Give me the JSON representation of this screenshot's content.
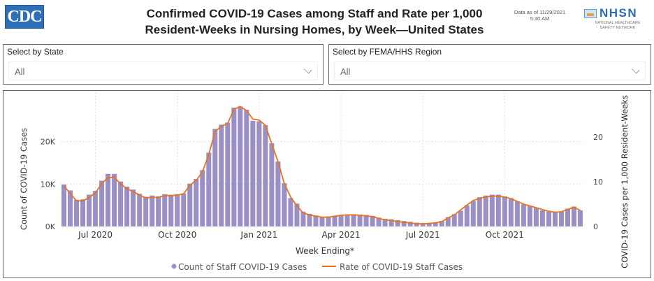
{
  "header": {
    "logo_text": "CDC",
    "title_line1": "Confirmed COVID-19 Cases among Staff and Rate per 1,000",
    "title_line2": "Resident-Weeks in Nursing Homes, by Week—United States",
    "data_as_of_line1": "Data as of 11/29/2021",
    "data_as_of_line2": "5:30 AM",
    "nhsn_text": "NHSN",
    "nhsn_sub1": "NATIONAL HEALTHCARE",
    "nhsn_sub2": "SAFETY NETWORK"
  },
  "filters": {
    "state": {
      "label": "Select by State",
      "value": "All"
    },
    "region": {
      "label": "Select by FEMA/HHS Region",
      "value": "All"
    }
  },
  "colors": {
    "bar": "#9a8fc6",
    "line": "#e8731a",
    "grid": "#d9d9d9"
  },
  "chart_data": {
    "type": "bar",
    "title": "Confirmed COVID-19 Cases among Staff and Rate per 1,000 Resident-Weeks in Nursing Homes, by Week—United States",
    "xlabel": "Week Ending*",
    "ylabel": "Count of COVID-19 Cases",
    "y2label": "COVID-19 Cases per 1,000 Resident-Weeks",
    "ylim": [
      0,
      29000
    ],
    "y2lim": [
      0,
      27.5
    ],
    "yticks": [
      {
        "v": 0,
        "label": "0K"
      },
      {
        "v": 10000,
        "label": "10K"
      },
      {
        "v": 20000,
        "label": "20K"
      }
    ],
    "y2ticks": [
      {
        "v": 0,
        "label": "0"
      },
      {
        "v": 10,
        "label": "10"
      },
      {
        "v": 20,
        "label": "20"
      }
    ],
    "xticks": [
      {
        "index": 5,
        "label": "Jul 2020"
      },
      {
        "index": 18,
        "label": "Oct 2020"
      },
      {
        "index": 31,
        "label": "Jan 2021"
      },
      {
        "index": 44,
        "label": "Apr 2021"
      },
      {
        "index": 57,
        "label": "Jul 2021"
      },
      {
        "index": 70,
        "label": "Oct 2021"
      }
    ],
    "grid": true,
    "legend_position": "bottom-center",
    "series": [
      {
        "name": "Count of Staff COVID-19 Cases",
        "type": "bar",
        "axis": "left",
        "values": [
          9900,
          8500,
          6300,
          6400,
          7500,
          8400,
          10800,
          12400,
          12400,
          10600,
          9400,
          8700,
          7700,
          7000,
          7300,
          7100,
          7600,
          7500,
          7600,
          7800,
          10100,
          11200,
          13300,
          17400,
          23000,
          24000,
          24500,
          28000,
          28300,
          27500,
          24900,
          24800,
          23900,
          19600,
          15300,
          10200,
          6700,
          5400,
          3500,
          3000,
          2600,
          2300,
          2400,
          2500,
          2700,
          2800,
          2900,
          2800,
          2700,
          2500,
          2100,
          1800,
          1700,
          1500,
          1300,
          1100,
          900,
          800,
          800,
          1000,
          1300,
          2200,
          2900,
          3700,
          5000,
          6000,
          6900,
          7300,
          7500,
          7500,
          7100,
          6700,
          5900,
          5200,
          4900,
          4400,
          3800,
          3500,
          3400,
          3500,
          4200,
          4700,
          3800
        ]
      },
      {
        "name": "Rate of COVID-19 Staff Cases",
        "type": "line",
        "axis": "right",
        "values": [
          9.0,
          7.4,
          5.7,
          5.7,
          6.5,
          7.5,
          9.6,
          10.9,
          11.0,
          9.5,
          8.4,
          7.8,
          7.0,
          6.4,
          6.5,
          6.5,
          6.9,
          6.9,
          7.0,
          7.3,
          9.2,
          10.3,
          12.2,
          16.1,
          21.2,
          22.4,
          23.0,
          26.2,
          26.8,
          25.9,
          24.0,
          23.8,
          22.6,
          18.5,
          14.5,
          9.6,
          6.6,
          4.6,
          3.0,
          2.6,
          2.3,
          2.1,
          2.1,
          2.3,
          2.5,
          2.6,
          2.6,
          2.5,
          2.4,
          2.2,
          1.8,
          1.5,
          1.3,
          1.1,
          0.9,
          0.8,
          0.6,
          0.6,
          0.7,
          0.8,
          1.1,
          1.9,
          2.6,
          3.7,
          4.8,
          5.8,
          6.3,
          6.6,
          6.8,
          6.8,
          6.6,
          6.2,
          5.6,
          5.0,
          4.6,
          4.2,
          3.8,
          3.4,
          3.2,
          3.3,
          3.8,
          4.3,
          3.6
        ]
      }
    ]
  }
}
